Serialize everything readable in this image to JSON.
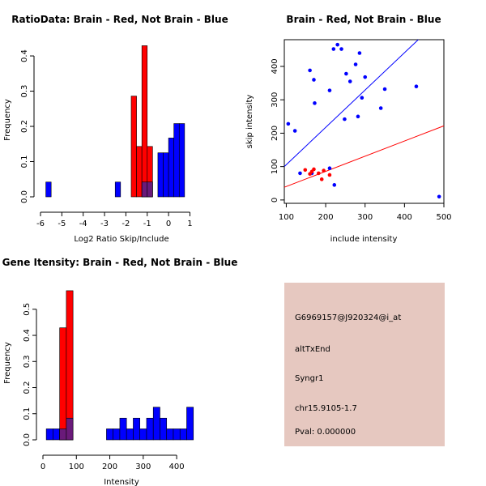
{
  "colors": {
    "brain": "#ff0000",
    "not_brain": "#0000ff",
    "overlap": "#6a1a7a",
    "info_bg": "#e6c8c0",
    "pval": "#cc0000"
  },
  "chart_data": [
    {
      "type": "bar",
      "title": "RatioData: Brain - Red, Not Brain - Blue",
      "xlabel": "Log2 Ratio Skip/Include",
      "ylabel": "Frequency",
      "xlim": [
        -6,
        1.4
      ],
      "ylim": [
        0,
        0.43
      ],
      "xticks": [
        "-6",
        "-5",
        "-4",
        "-3",
        "-2",
        "-1",
        "0",
        "1"
      ],
      "yticks": [
        "0.0",
        "0.1",
        "0.2",
        "0.3",
        "0.4"
      ],
      "bin_width": 0.25,
      "series": [
        {
          "name": "Not Brain",
          "color": "blue",
          "bins": [
            {
              "x0": -5.75,
              "v": 0.042
            },
            {
              "x0": -2.5,
              "v": 0.042
            },
            {
              "x0": -1.25,
              "v": 0.042
            },
            {
              "x0": -1.0,
              "v": 0.042
            },
            {
              "x0": -0.5,
              "v": 0.125
            },
            {
              "x0": -0.25,
              "v": 0.125
            },
            {
              "x0": 0.0,
              "v": 0.167
            },
            {
              "x0": 0.25,
              "v": 0.208
            },
            {
              "x0": 0.5,
              "v": 0.208
            }
          ]
        },
        {
          "name": "Brain",
          "color": "red",
          "bins": [
            {
              "x0": -1.75,
              "v": 0.286
            },
            {
              "x0": -1.5,
              "v": 0.143
            },
            {
              "x0": -1.25,
              "v": 0.429
            },
            {
              "x0": -1.0,
              "v": 0.143
            }
          ]
        }
      ]
    },
    {
      "type": "scatter",
      "title": "Brain - Red, Not Brain - Blue",
      "xlabel": "include intensity",
      "ylabel": "skip intensity",
      "xlim": [
        95,
        500
      ],
      "ylim": [
        -10,
        480
      ],
      "xticks": [
        "100",
        "200",
        "300",
        "400",
        "500"
      ],
      "yticks": [
        "0",
        "100",
        "200",
        "300",
        "400"
      ],
      "series": [
        {
          "name": "Not Brain",
          "color": "blue",
          "points": [
            [
              105,
              228
            ],
            [
              122,
              207
            ],
            [
              160,
              388
            ],
            [
              170,
              360
            ],
            [
              172,
              290
            ],
            [
              210,
              328
            ],
            [
              220,
              452
            ],
            [
              230,
              465
            ],
            [
              240,
              452
            ],
            [
              248,
              242
            ],
            [
              252,
              378
            ],
            [
              262,
              355
            ],
            [
              276,
              406
            ],
            [
              282,
              250
            ],
            [
              286,
              440
            ],
            [
              292,
              306
            ],
            [
              300,
              368
            ],
            [
              340,
              275
            ],
            [
              350,
              332
            ],
            [
              430,
              340
            ],
            [
              488,
              10
            ],
            [
              135,
              80
            ],
            [
              222,
              45
            ],
            [
              210,
              95
            ],
            [
              165,
              80
            ]
          ],
          "fit": {
            "x0": 95,
            "y0": 100,
            "x1": 435,
            "y1": 480
          }
        },
        {
          "name": "Brain",
          "color": "red",
          "points": [
            [
              148,
              90
            ],
            [
              160,
              78
            ],
            [
              165,
              85
            ],
            [
              170,
              92
            ],
            [
              182,
              80
            ],
            [
              190,
              62
            ],
            [
              195,
              88
            ],
            [
              210,
              75
            ]
          ],
          "fit": {
            "x0": 95,
            "y0": 38,
            "x1": 500,
            "y1": 222
          }
        }
      ]
    },
    {
      "type": "bar",
      "title": "Gene Itensity: Brain - Red, Not Brain - Blue",
      "xlabel": "Intensity",
      "ylabel": "Frequency",
      "xlim": [
        0,
        470
      ],
      "ylim": [
        0,
        0.58
      ],
      "xticks": [
        "0",
        "100",
        "200",
        "300",
        "400"
      ],
      "yticks": [
        "0.0",
        "0.1",
        "0.2",
        "0.3",
        "0.4",
        "0.5"
      ],
      "bin_width": 20,
      "series": [
        {
          "name": "Not Brain",
          "color": "blue",
          "bins": [
            {
              "x0": 10,
              "v": 0.042
            },
            {
              "x0": 30,
              "v": 0.042
            },
            {
              "x0": 50,
              "v": 0.042
            },
            {
              "x0": 70,
              "v": 0.083
            },
            {
              "x0": 190,
              "v": 0.042
            },
            {
              "x0": 210,
              "v": 0.042
            },
            {
              "x0": 230,
              "v": 0.083
            },
            {
              "x0": 250,
              "v": 0.042
            },
            {
              "x0": 270,
              "v": 0.083
            },
            {
              "x0": 290,
              "v": 0.042
            },
            {
              "x0": 310,
              "v": 0.083
            },
            {
              "x0": 330,
              "v": 0.125
            },
            {
              "x0": 350,
              "v": 0.083
            },
            {
              "x0": 370,
              "v": 0.042
            },
            {
              "x0": 390,
              "v": 0.042
            },
            {
              "x0": 410,
              "v": 0.042
            },
            {
              "x0": 430,
              "v": 0.125
            }
          ]
        },
        {
          "name": "Brain",
          "color": "red",
          "bins": [
            {
              "x0": 50,
              "v": 0.429
            },
            {
              "x0": 70,
              "v": 0.571
            }
          ]
        }
      ]
    }
  ],
  "info_box": {
    "probe": "G6969157@J920324@i_at",
    "event": "altTxEnd",
    "gene": "Syngr1",
    "location": "chr15.9105-1.7",
    "pval": "Pval: 0.000000"
  }
}
